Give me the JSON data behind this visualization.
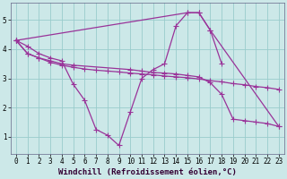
{
  "background_color": "#cce8e8",
  "grid_color": "#99cccc",
  "line_color": "#993399",
  "marker": "+",
  "markersize": 4,
  "linewidth": 0.9,
  "xlabel": "Windchill (Refroidissement éolien,°C)",
  "xlabel_fontsize": 6.5,
  "tick_fontsize": 5.5,
  "xlim": [
    -0.5,
    23.5
  ],
  "ylim": [
    0.4,
    5.6
  ],
  "yticks": [
    1,
    2,
    3,
    4,
    5
  ],
  "xticks": [
    0,
    1,
    2,
    3,
    4,
    5,
    6,
    7,
    8,
    9,
    10,
    11,
    12,
    13,
    14,
    15,
    16,
    17,
    18,
    19,
    20,
    21,
    22,
    23
  ],
  "series": [
    {
      "x": [
        0,
        1,
        2,
        3,
        4,
        5,
        6,
        7,
        8,
        9,
        10,
        11,
        12,
        13,
        14,
        15,
        16,
        17,
        18
      ],
      "y": [
        4.3,
        4.1,
        3.85,
        3.7,
        3.6,
        2.8,
        2.25,
        1.25,
        1.05,
        0.7,
        1.85,
        3.0,
        3.3,
        3.5,
        4.8,
        5.25,
        5.25,
        4.65,
        3.5
      ]
    },
    {
      "x": [
        0,
        15,
        16,
        17,
        23
      ],
      "y": [
        4.3,
        5.25,
        5.25,
        4.65,
        1.35
      ]
    },
    {
      "x": [
        0,
        1,
        2,
        3,
        4,
        5,
        10,
        11,
        12,
        13,
        14,
        15,
        16,
        17,
        18,
        19,
        20,
        21,
        22,
        23
      ],
      "y": [
        4.3,
        3.85,
        3.7,
        3.6,
        3.5,
        3.45,
        3.3,
        3.25,
        3.2,
        3.18,
        3.15,
        3.1,
        3.05,
        2.85,
        2.45,
        1.6,
        1.55,
        1.5,
        1.45,
        1.35
      ]
    },
    {
      "x": [
        0,
        1,
        2,
        3,
        4,
        5,
        6,
        7,
        8,
        9,
        10,
        11,
        12,
        13,
        14,
        15,
        16,
        17,
        18,
        19,
        20,
        21,
        22,
        23
      ],
      "y": [
        4.3,
        3.85,
        3.7,
        3.55,
        3.45,
        3.38,
        3.32,
        3.28,
        3.25,
        3.22,
        3.18,
        3.15,
        3.12,
        3.08,
        3.05,
        3.02,
        2.98,
        2.92,
        2.88,
        2.82,
        2.78,
        2.72,
        2.68,
        2.62
      ]
    }
  ]
}
